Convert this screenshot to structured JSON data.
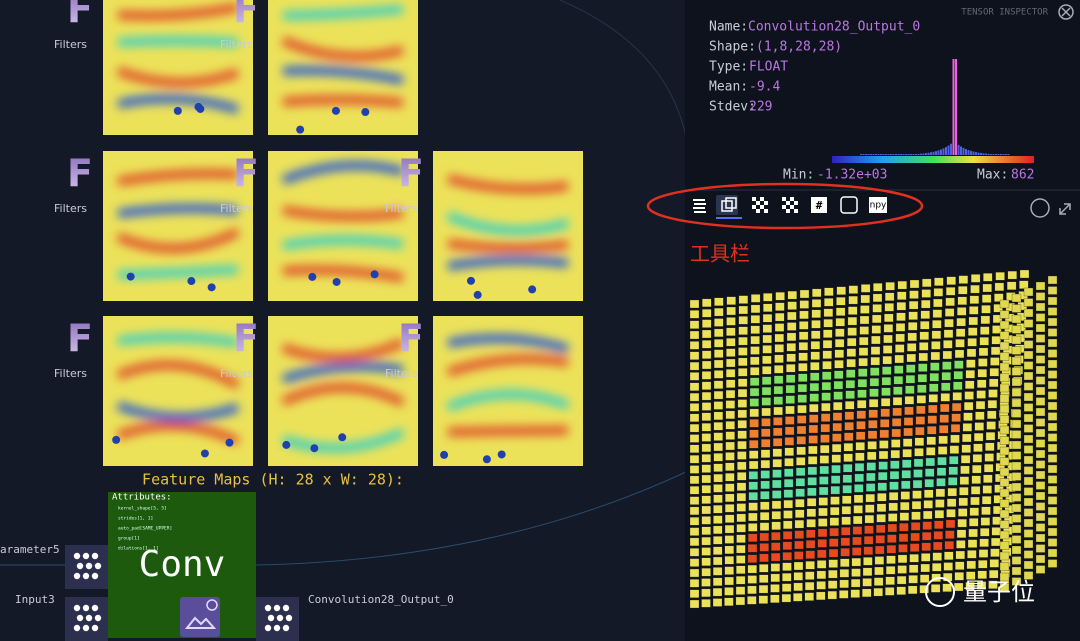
{
  "graph": {
    "filter_icons": [
      "F",
      "F",
      "F",
      "F",
      "F",
      "F",
      "F",
      "F"
    ],
    "filter_labels": [
      "Filters",
      "Filters",
      "Filters",
      "Filters",
      "Filters",
      "Filters",
      "Filters",
      "Filters"
    ],
    "feature_maps_title": "Feature Maps (H: 28 x W: 28):",
    "node": {
      "attributes_title": "Attributes:",
      "attributes": [
        "kernel_shape[5, 5]",
        "strides[1, 1]",
        "auto_pad[SAME_UPPER]",
        "group[1]",
        "dilations[1, 1]"
      ],
      "op": "Conv"
    },
    "inputs": [
      "arameter5",
      "Input3"
    ],
    "output": "Convolution28_Output_0"
  },
  "inspector": {
    "title": "TENSOR INSPECTOR",
    "fields": [
      {
        "label": "Name:",
        "value": "Convolution28_Output_0"
      },
      {
        "label": "Shape:",
        "value": "(1,8,28,28)"
      },
      {
        "label": "Type:",
        "value": "FLOAT"
      },
      {
        "label": "Mean:",
        "value": "-9.4"
      },
      {
        "label": "Stdev:",
        "value": "229"
      }
    ],
    "min_label": "Min:",
    "min_value": "-1.32e+03",
    "max_label": "Max:",
    "max_value": "862",
    "toolbar": [
      "#",
      "npy"
    ],
    "annotation": "工具栏"
  },
  "watermark": "量子位"
}
